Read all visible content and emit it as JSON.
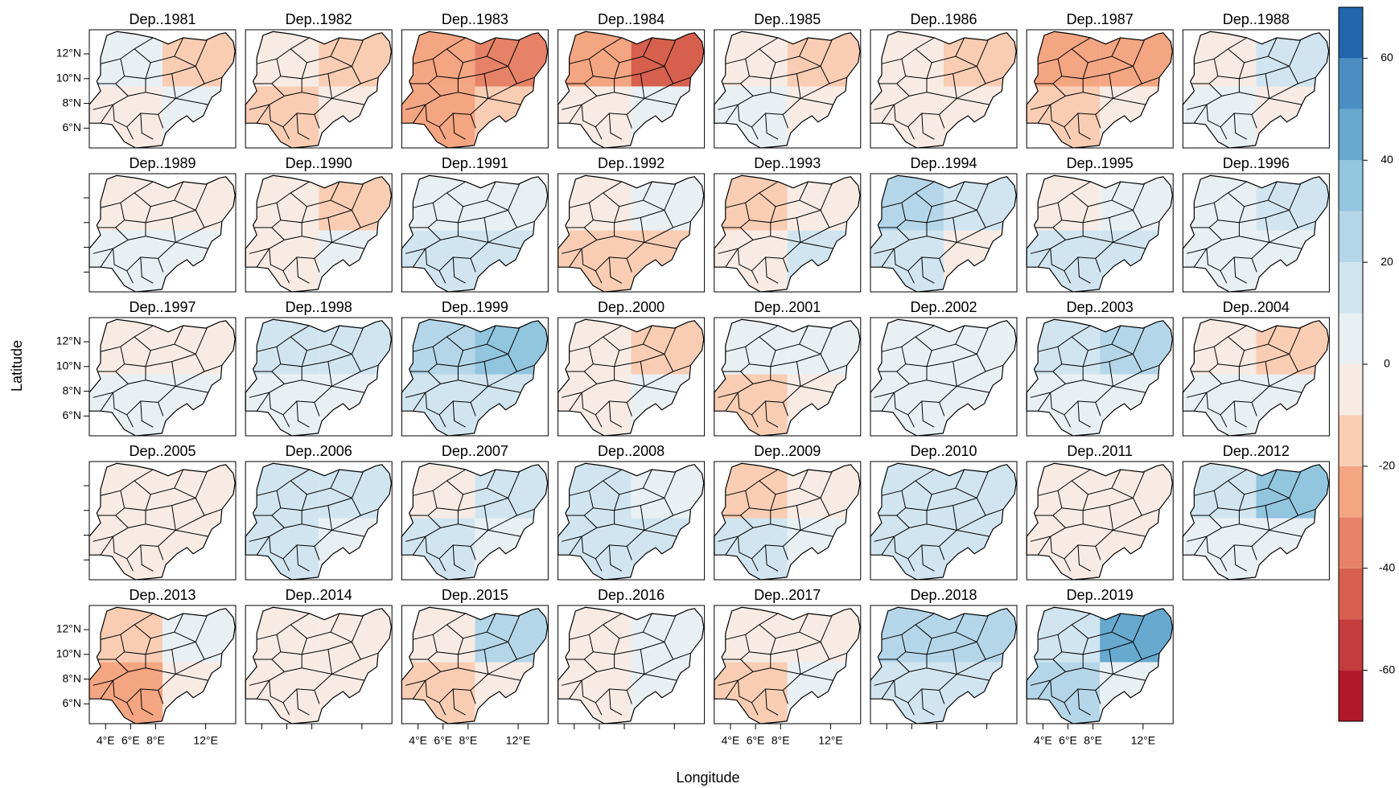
{
  "chart_data": {
    "type": "map",
    "xlabel": "Longitude",
    "ylabel": "Latitude",
    "xlim": [
      2.7,
      14.4
    ],
    "ylim": [
      4.4,
      13.95
    ],
    "xticks": [
      {
        "value": 4,
        "label": "4°E"
      },
      {
        "value": 6,
        "label": "6°E"
      },
      {
        "value": 8,
        "label": "8°E"
      },
      {
        "value": 12,
        "label": "12°E"
      }
    ],
    "yticks": [
      {
        "value": 6,
        "label": "6°N"
      },
      {
        "value": 8,
        "label": "8°N"
      },
      {
        "value": 10,
        "label": "10°N"
      },
      {
        "value": 12,
        "label": "12°N"
      }
    ],
    "zlim": [
      -70,
      70
    ],
    "zticks": [
      -60,
      -40,
      -20,
      0,
      20,
      40,
      60
    ],
    "colors": [
      "#b2182b",
      "#c43c3c",
      "#d6604d",
      "#e58267",
      "#f4a582",
      "#f8cdb4",
      "#f7ebe4",
      "#e9f0f4",
      "#d1e5f0",
      "#b4d6e8",
      "#92c5de",
      "#67a9cf",
      "#4b8fc2",
      "#2166ac"
    ],
    "panels": [
      {
        "title": "Dep..1981",
        "values": [
          2,
          -15,
          -10,
          5
        ]
      },
      {
        "title": "Dep..1982",
        "values": [
          -10,
          -15,
          -15,
          -5
        ]
      },
      {
        "title": "Dep..1983",
        "values": [
          -25,
          -35,
          -30,
          -20
        ]
      },
      {
        "title": "Dep..1984",
        "values": [
          -30,
          -45,
          -5,
          5
        ]
      },
      {
        "title": "Dep..1985",
        "values": [
          -5,
          -15,
          5,
          -5
        ]
      },
      {
        "title": "Dep..1986",
        "values": [
          -10,
          -15,
          -10,
          -5
        ]
      },
      {
        "title": "Dep..1987",
        "values": [
          -25,
          -30,
          -15,
          -10
        ]
      },
      {
        "title": "Dep..1988",
        "values": [
          -5,
          15,
          5,
          -3
        ]
      },
      {
        "title": "Dep..1989",
        "values": [
          -3,
          -10,
          3,
          3
        ]
      },
      {
        "title": "Dep..1990",
        "values": [
          -10,
          -20,
          -8,
          2
        ]
      },
      {
        "title": "Dep..1991",
        "values": [
          5,
          5,
          12,
          10
        ]
      },
      {
        "title": "Dep..1992",
        "values": [
          -5,
          8,
          -15,
          -12
        ]
      },
      {
        "title": "Dep..1993",
        "values": [
          -12,
          -5,
          -5,
          12
        ]
      },
      {
        "title": "Dep..1994",
        "values": [
          25,
          15,
          12,
          -10
        ]
      },
      {
        "title": "Dep..1995",
        "values": [
          -5,
          5,
          10,
          15
        ]
      },
      {
        "title": "Dep..1996",
        "values": [
          5,
          10,
          3,
          3
        ]
      },
      {
        "title": "Dep..1997",
        "values": [
          -5,
          -8,
          5,
          5
        ]
      },
      {
        "title": "Dep..1998",
        "values": [
          10,
          12,
          5,
          5
        ]
      },
      {
        "title": "Dep..1999",
        "values": [
          20,
          30,
          15,
          10
        ]
      },
      {
        "title": "Dep..2000",
        "values": [
          -5,
          -12,
          -5,
          3
        ]
      },
      {
        "title": "Dep..2001",
        "values": [
          5,
          5,
          -20,
          -5
        ]
      },
      {
        "title": "Dep..2002",
        "values": [
          5,
          3,
          5,
          3
        ]
      },
      {
        "title": "Dep..2003",
        "values": [
          10,
          20,
          5,
          3
        ]
      },
      {
        "title": "Dep..2004",
        "values": [
          -5,
          -15,
          5,
          5
        ]
      },
      {
        "title": "Dep..2005",
        "values": [
          -5,
          -3,
          -10,
          -3
        ]
      },
      {
        "title": "Dep..2006",
        "values": [
          15,
          12,
          10,
          8
        ]
      },
      {
        "title": "Dep..2007",
        "values": [
          -8,
          15,
          15,
          5
        ]
      },
      {
        "title": "Dep..2008",
        "values": [
          12,
          8,
          15,
          10
        ]
      },
      {
        "title": "Dep..2009",
        "values": [
          -15,
          -5,
          10,
          5
        ]
      },
      {
        "title": "Dep..2010",
        "values": [
          15,
          10,
          12,
          10
        ]
      },
      {
        "title": "Dep..2011",
        "values": [
          -10,
          -5,
          -8,
          -5
        ]
      },
      {
        "title": "Dep..2012",
        "values": [
          10,
          35,
          5,
          3
        ]
      },
      {
        "title": "Dep..2013",
        "values": [
          -20,
          5,
          -30,
          -8
        ]
      },
      {
        "title": "Dep..2014",
        "values": [
          -5,
          -10,
          -5,
          -8
        ]
      },
      {
        "title": "Dep..2015",
        "values": [
          -10,
          20,
          -15,
          -5
        ]
      },
      {
        "title": "Dep..2016",
        "values": [
          -3,
          5,
          -3,
          3
        ]
      },
      {
        "title": "Dep..2017",
        "values": [
          -10,
          -5,
          -15,
          3
        ]
      },
      {
        "title": "Dep..2018",
        "values": [
          25,
          20,
          15,
          10
        ]
      },
      {
        "title": "Dep..2019",
        "values": [
          15,
          40,
          20,
          5
        ]
      }
    ]
  }
}
